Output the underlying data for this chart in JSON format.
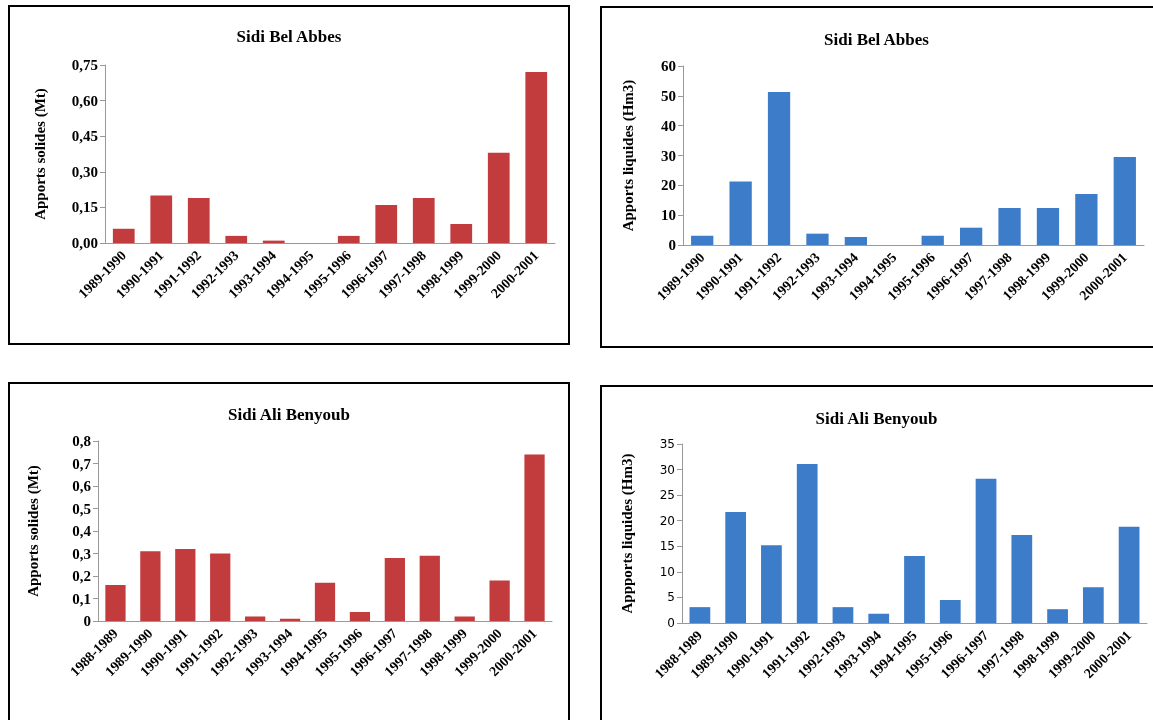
{
  "chart_data": [
    {
      "type": "bar",
      "title": "Sidi Bel Abbes",
      "ylabel": "Apports solides (Mt)",
      "categories": [
        "1989-1990",
        "1990-1991",
        "1991-1992",
        "1992-1993",
        "1993-1994",
        "1994-1995",
        "1995-1996",
        "1996-1997",
        "1997-1998",
        "1998-1999",
        "1999-2000",
        "2000-2001"
      ],
      "values": [
        0.06,
        0.2,
        0.19,
        0.03,
        0.01,
        null,
        0.03,
        0.16,
        0.19,
        0.08,
        0.38,
        0.72
      ],
      "color": "#c23b3d",
      "ylim": [
        0,
        0.75
      ],
      "yticks": [
        {
          "value": 0,
          "label": "0,00"
        },
        {
          "value": 0.15,
          "label": "0,15"
        },
        {
          "value": 0.3,
          "label": "0,30"
        },
        {
          "value": 0.45,
          "label": "0,45"
        },
        {
          "value": 0.6,
          "label": "0,60"
        },
        {
          "value": 0.75,
          "label": "0,75"
        }
      ],
      "grid": false
    },
    {
      "type": "bar",
      "title": "Sidi Bel Abbes",
      "ylabel": "Apports liquides (Hm3)",
      "categories": [
        "1989-1990",
        "1990-1991",
        "1991-1992",
        "1992-1993",
        "1993-1994",
        "1994-1995",
        "1995-1996",
        "1996-1997",
        "1997-1998",
        "1998-1999",
        "1999-2000",
        "2000-2001"
      ],
      "values": [
        3.1,
        21.3,
        51.3,
        3.8,
        2.7,
        null,
        3.1,
        5.8,
        12.4,
        12.4,
        17.1,
        29.5
      ],
      "color": "#3d7cc9",
      "ylim": [
        0,
        60
      ],
      "yticks": [
        0,
        10,
        20,
        30,
        40,
        50,
        60
      ],
      "grid": false
    },
    {
      "type": "bar",
      "title": "Sidi Ali Benyoub",
      "ylabel": "Apports solides (Mt)",
      "categories": [
        "1988-1989",
        "1989-1990",
        "1990-1991",
        "1991-1992",
        "1992-1993",
        "1993-1994",
        "1994-1995",
        "1995-1996",
        "1996-1997",
        "1997-1998",
        "1998-1999",
        "1999-2000",
        "2000-2001"
      ],
      "values": [
        0.16,
        0.31,
        0.32,
        0.3,
        0.02,
        0.01,
        0.17,
        0.04,
        0.28,
        0.29,
        0.02,
        0.18,
        0.74
      ],
      "color": "#c23b3d",
      "ylim": [
        0,
        0.8
      ],
      "yticks": [
        0,
        {
          "value": 0.1,
          "label": "0,1"
        },
        {
          "value": 0.2,
          "label": "0,2"
        },
        {
          "value": 0.3,
          "label": "0,3"
        },
        {
          "value": 0.4,
          "label": "0,4"
        },
        {
          "value": 0.5,
          "label": "0,5"
        },
        {
          "value": 0.6,
          "label": "0,6"
        },
        {
          "value": 0.7,
          "label": "0,7"
        },
        {
          "value": 0.8,
          "label": "0,8"
        }
      ],
      "grid": false
    },
    {
      "type": "bar",
      "title": "Sidi Ali Benyoub",
      "ylabel": "Appports liquides (Hm3)",
      "categories": [
        "1988-1989",
        "1989-1990",
        "1990-1991",
        "1991-1992",
        "1992-1993",
        "1993-1994",
        "1994-1995",
        "1995-1996",
        "1996-1997",
        "1997-1998",
        "1998-1999",
        "1999-2000",
        "2000-2001"
      ],
      "values": [
        3.1,
        21.7,
        15.2,
        31.1,
        3.1,
        1.8,
        13.1,
        4.5,
        28.2,
        17.2,
        2.7,
        7.0,
        18.8
      ],
      "color": "#3d7cc9",
      "ylim": [
        0,
        35
      ],
      "yticks": [
        0,
        5,
        10,
        15,
        20,
        25,
        30,
        35
      ],
      "grid": false
    }
  ]
}
